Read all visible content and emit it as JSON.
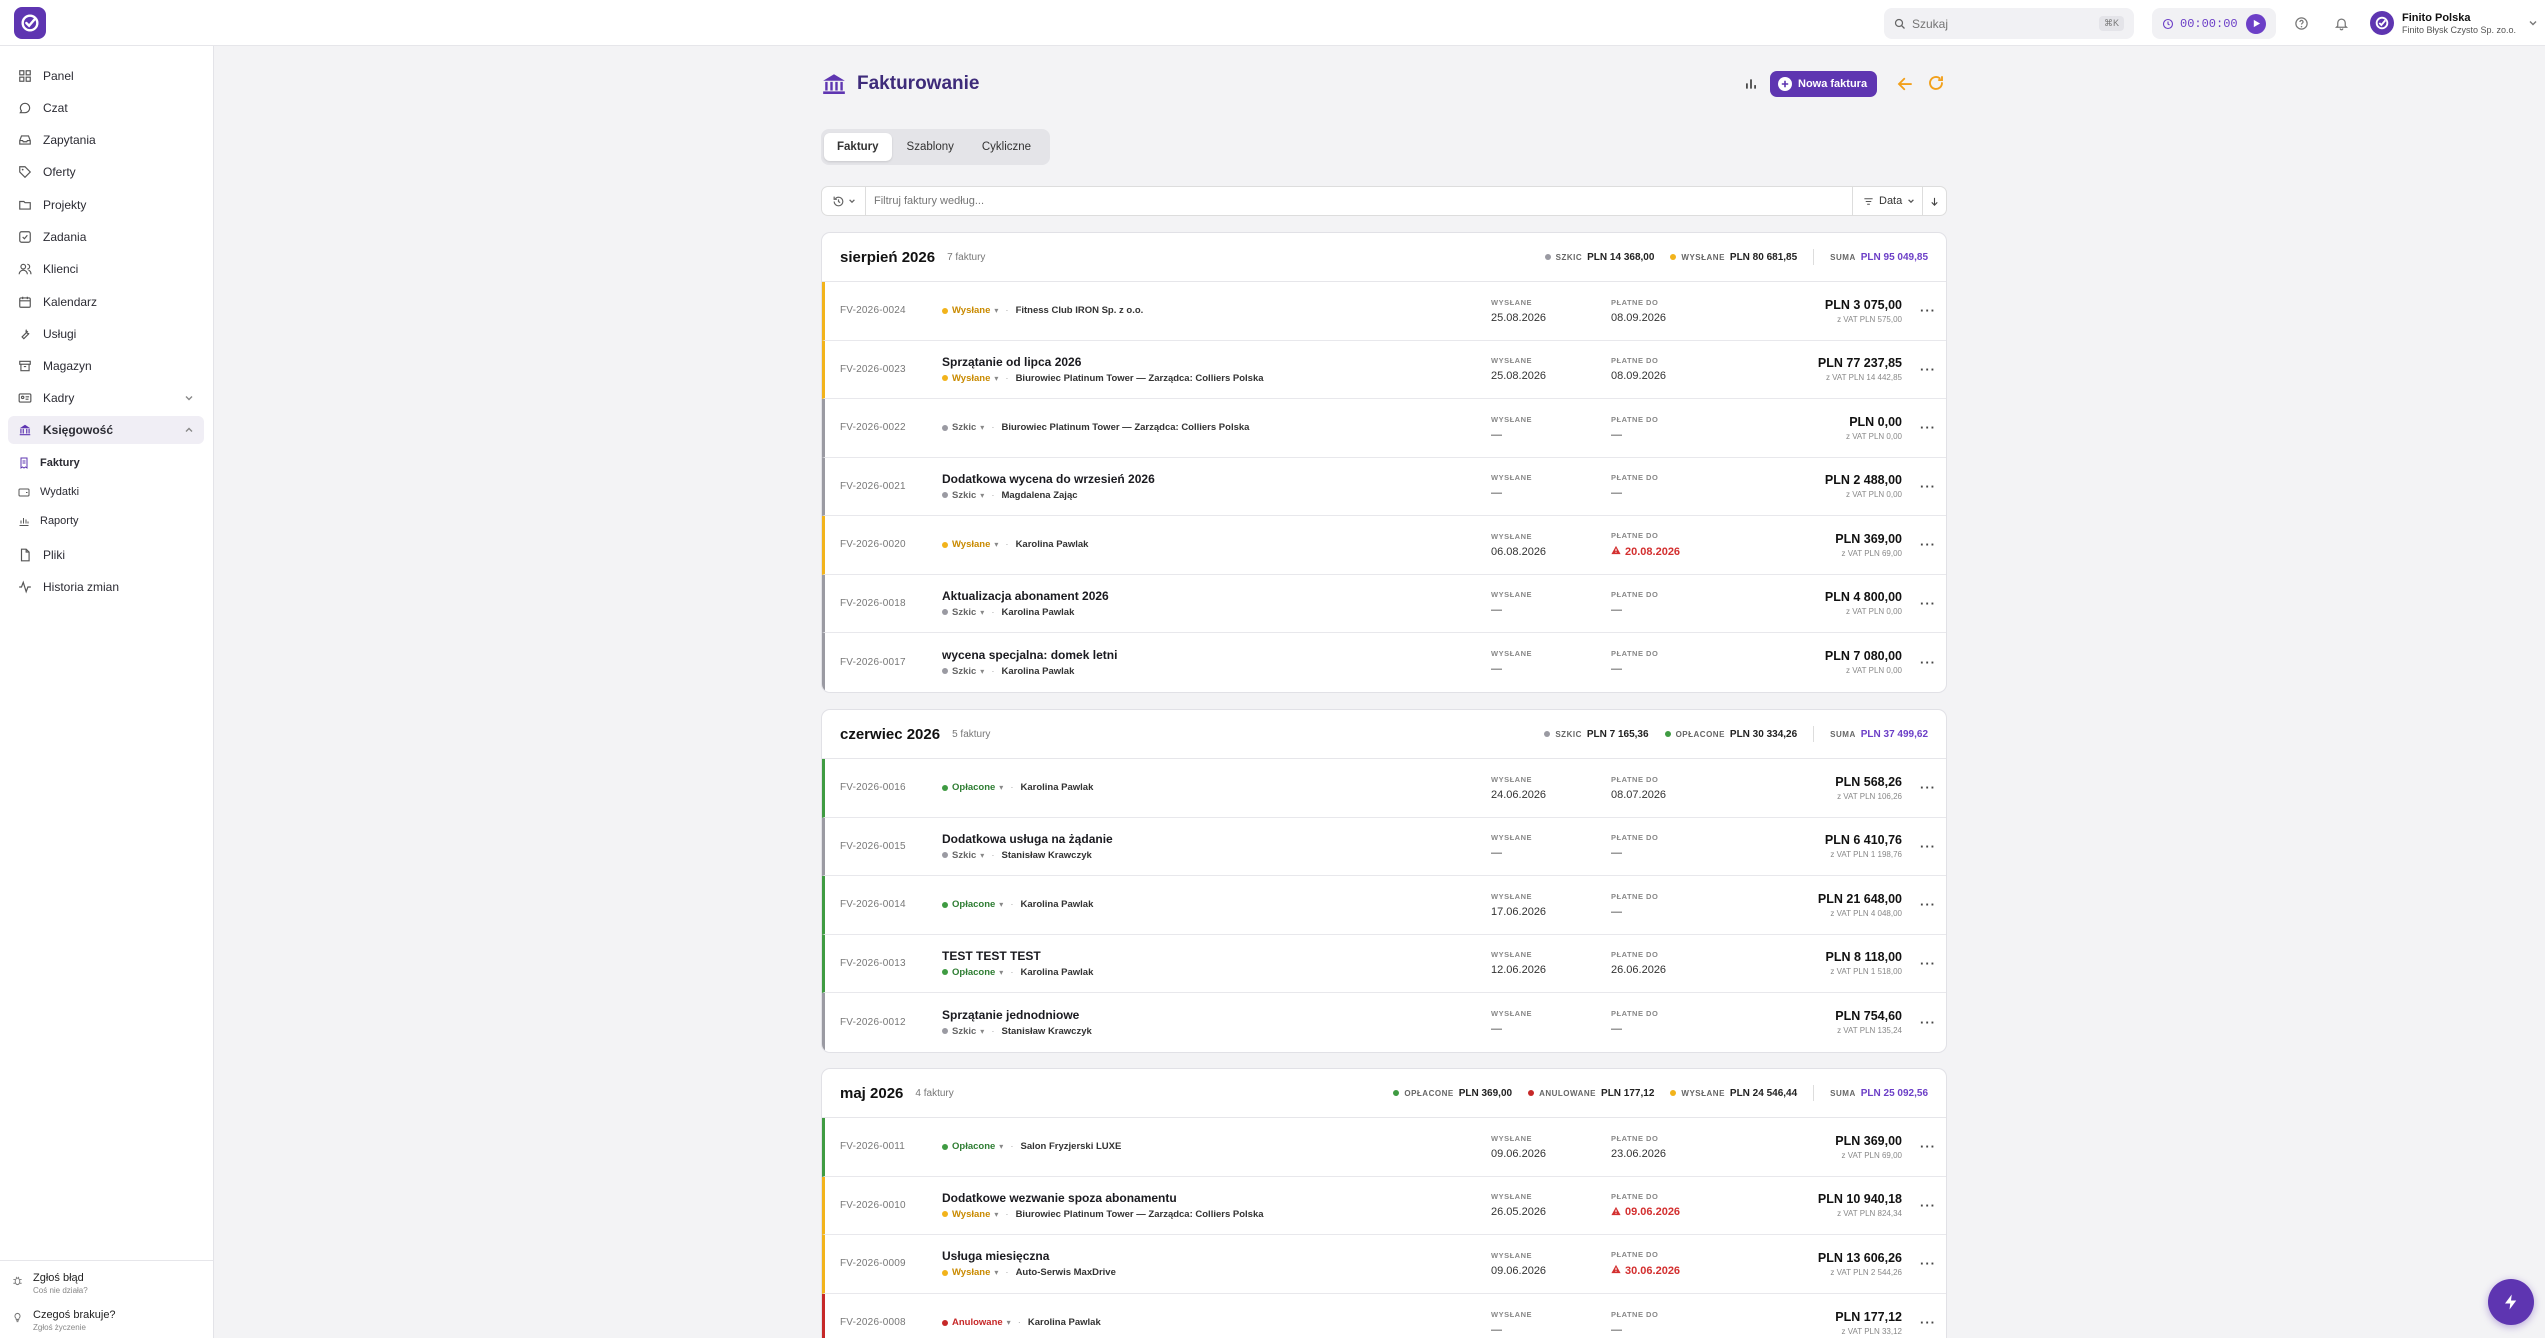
{
  "topbar": {
    "search_placeholder": "Szukaj",
    "search_shortcut": "⌘K",
    "timer": "00:00:00",
    "account_name": "Finito Polska",
    "account_sub": "Finito Błysk Czysto Sp. zo.o."
  },
  "sidebar": {
    "items": [
      {
        "label": "Panel",
        "icon": "grid-icon"
      },
      {
        "label": "Czat",
        "icon": "chat-icon"
      },
      {
        "label": "Zapytania",
        "icon": "inbox-icon"
      },
      {
        "label": "Oferty",
        "icon": "tag-icon"
      },
      {
        "label": "Projekty",
        "icon": "folder-icon"
      },
      {
        "label": "Zadania",
        "icon": "checkbox-icon"
      },
      {
        "label": "Klienci",
        "icon": "users-icon"
      },
      {
        "label": "Kalendarz",
        "icon": "calendar-icon"
      },
      {
        "label": "Usługi",
        "icon": "wrench-icon"
      },
      {
        "label": "Magazyn",
        "icon": "box-icon"
      },
      {
        "label": "Kadry",
        "icon": "id-card-icon"
      },
      {
        "label": "Księgowość",
        "icon": "bank-icon"
      },
      {
        "label": "Pliki",
        "icon": "file-icon"
      },
      {
        "label": "Historia zmian",
        "icon": "activity-icon"
      }
    ],
    "sub_items": [
      {
        "label": "Faktury",
        "icon": "invoice-icon"
      },
      {
        "label": "Wydatki",
        "icon": "wallet-icon"
      },
      {
        "label": "Raporty",
        "icon": "chart-icon"
      }
    ],
    "footer": [
      {
        "title": "Zgłoś błąd",
        "sub": "Coś nie działa?",
        "icon": "bug-icon"
      },
      {
        "title": "Czegoś brakuje?",
        "sub": "Zgłoś życzenie",
        "icon": "lightbulb-icon"
      }
    ]
  },
  "page": {
    "title": "Fakturowanie",
    "new_button": "Nowa faktura",
    "tabs": [
      "Faktury",
      "Szablony",
      "Cykliczne"
    ],
    "filter_placeholder": "Filtruj faktury według...",
    "sort_label": "Data"
  },
  "labels": {
    "sent": "WYSŁANE",
    "due": "PŁATNE DO",
    "sum": "SUMA"
  },
  "colors": {
    "accent": "#5e35b1",
    "wyslane": "#f2b31b",
    "szkic": "#9a9aa2",
    "oplacone": "#3f9b42",
    "anulowane": "#c62828",
    "overdue": "#d32f2f"
  },
  "groups": [
    {
      "month": "sierpień 2026",
      "count": "7 faktury",
      "stats": [
        {
          "label": "SZKIC",
          "value": "PLN 14 368,00",
          "status": "szkic"
        },
        {
          "label": "WYSŁANE",
          "value": "PLN 80 681,85",
          "status": "wyslane"
        }
      ],
      "sum": "PLN 95 049,85",
      "rows": [
        {
          "number": "FV-2026-0024",
          "title": "",
          "status": "Wysłane",
          "status_key": "wyslane",
          "client": "Fitness Club IRON Sp. z o.o.",
          "sent": "25.08.2026",
          "due": "08.09.2026",
          "overdue": false,
          "amount": "PLN 3 075,00",
          "vat": "z VAT PLN 575,00"
        },
        {
          "number": "FV-2026-0023",
          "title": "Sprzątanie od lipca 2026",
          "status": "Wysłane",
          "status_key": "wyslane",
          "client": "Biurowiec Platinum Tower — Zarządca: Colliers Polska",
          "sent": "25.08.2026",
          "due": "08.09.2026",
          "overdue": false,
          "amount": "PLN 77 237,85",
          "vat": "z VAT PLN 14 442,85"
        },
        {
          "number": "FV-2026-0022",
          "title": "",
          "status": "Szkic",
          "status_key": "szkic",
          "client": "Biurowiec Platinum Tower — Zarządca: Colliers Polska",
          "sent": "—",
          "due": "—",
          "overdue": false,
          "amount": "PLN 0,00",
          "vat": "z VAT PLN 0,00"
        },
        {
          "number": "FV-2026-0021",
          "title": "Dodatkowa wycena do wrzesień 2026",
          "status": "Szkic",
          "status_key": "szkic",
          "client": "Magdalena Zając",
          "sent": "—",
          "due": "—",
          "overdue": false,
          "amount": "PLN 2 488,00",
          "vat": "z VAT PLN 0,00"
        },
        {
          "number": "FV-2026-0020",
          "title": "",
          "status": "Wysłane",
          "status_key": "wyslane",
          "client": "Karolina Pawlak",
          "sent": "06.08.2026",
          "due": "20.08.2026",
          "overdue": true,
          "amount": "PLN 369,00",
          "vat": "z VAT PLN 69,00"
        },
        {
          "number": "FV-2026-0018",
          "title": "Aktualizacja abonament 2026",
          "status": "Szkic",
          "status_key": "szkic",
          "client": "Karolina Pawlak",
          "sent": "—",
          "due": "—",
          "overdue": false,
          "amount": "PLN 4 800,00",
          "vat": "z VAT PLN 0,00"
        },
        {
          "number": "FV-2026-0017",
          "title": "wycena specjalna: domek letni",
          "status": "Szkic",
          "status_key": "szkic",
          "client": "Karolina Pawlak",
          "sent": "—",
          "due": "—",
          "overdue": false,
          "amount": "PLN 7 080,00",
          "vat": "z VAT PLN 0,00"
        }
      ]
    },
    {
      "month": "czerwiec 2026",
      "count": "5 faktury",
      "stats": [
        {
          "label": "SZKIC",
          "value": "PLN 7 165,36",
          "status": "szkic"
        },
        {
          "label": "OPŁACONE",
          "value": "PLN 30 334,26",
          "status": "oplacone"
        }
      ],
      "sum": "PLN 37 499,62",
      "rows": [
        {
          "number": "FV-2026-0016",
          "title": "",
          "status": "Opłacone",
          "status_key": "oplacone",
          "client": "Karolina Pawlak",
          "sent": "24.06.2026",
          "due": "08.07.2026",
          "overdue": false,
          "amount": "PLN 568,26",
          "vat": "z VAT PLN 106,26"
        },
        {
          "number": "FV-2026-0015",
          "title": "Dodatkowa usługa na żądanie",
          "status": "Szkic",
          "status_key": "szkic",
          "client": "Stanisław Krawczyk",
          "sent": "—",
          "due": "—",
          "overdue": false,
          "amount": "PLN 6 410,76",
          "vat": "z VAT PLN 1 198,76"
        },
        {
          "number": "FV-2026-0014",
          "title": "",
          "status": "Opłacone",
          "status_key": "oplacone",
          "client": "Karolina Pawlak",
          "sent": "17.06.2026",
          "due": "—",
          "overdue": false,
          "amount": "PLN 21 648,00",
          "vat": "z VAT PLN 4 048,00"
        },
        {
          "number": "FV-2026-0013",
          "title": "TEST TEST TEST",
          "status": "Opłacone",
          "status_key": "oplacone",
          "client": "Karolina Pawlak",
          "sent": "12.06.2026",
          "due": "26.06.2026",
          "overdue": false,
          "amount": "PLN 8 118,00",
          "vat": "z VAT PLN 1 518,00"
        },
        {
          "number": "FV-2026-0012",
          "title": "Sprzątanie jednodniowe",
          "status": "Szkic",
          "status_key": "szkic",
          "client": "Stanisław Krawczyk",
          "sent": "—",
          "due": "—",
          "overdue": false,
          "amount": "PLN 754,60",
          "vat": "z VAT PLN 135,24"
        }
      ]
    },
    {
      "month": "maj 2026",
      "count": "4 faktury",
      "stats": [
        {
          "label": "OPŁACONE",
          "value": "PLN 369,00",
          "status": "oplacone"
        },
        {
          "label": "ANULOWANE",
          "value": "PLN 177,12",
          "status": "anulowane"
        },
        {
          "label": "WYSŁANE",
          "value": "PLN 24 546,44",
          "status": "wyslane"
        }
      ],
      "sum": "PLN 25 092,56",
      "rows": [
        {
          "number": "FV-2026-0011",
          "title": "",
          "status": "Opłacone",
          "status_key": "oplacone",
          "client": "Salon Fryzjerski LUXE",
          "sent": "09.06.2026",
          "due": "23.06.2026",
          "overdue": false,
          "amount": "PLN 369,00",
          "vat": "z VAT PLN 69,00"
        },
        {
          "number": "FV-2026-0010",
          "title": "Dodatkowe wezwanie spoza abonamentu",
          "status": "Wysłane",
          "status_key": "wyslane",
          "client": "Biurowiec Platinum Tower — Zarządca: Colliers Polska",
          "sent": "26.05.2026",
          "due": "09.06.2026",
          "overdue": true,
          "amount": "PLN 10 940,18",
          "vat": "z VAT PLN 824,34"
        },
        {
          "number": "FV-2026-0009",
          "title": "Usługa miesięczna",
          "status": "Wysłane",
          "status_key": "wyslane",
          "client": "Auto-Serwis MaxDrive",
          "sent": "09.06.2026",
          "due": "30.06.2026",
          "overdue": true,
          "amount": "PLN 13 606,26",
          "vat": "z VAT PLN 2 544,26"
        },
        {
          "number": "FV-2026-0008",
          "title": "",
          "status": "Anulowane",
          "status_key": "anulowane",
          "client": "Karolina Pawlak",
          "sent": "—",
          "due": "—",
          "overdue": false,
          "amount": "PLN 177,12",
          "vat": "z VAT PLN 33,12"
        }
      ]
    }
  ]
}
